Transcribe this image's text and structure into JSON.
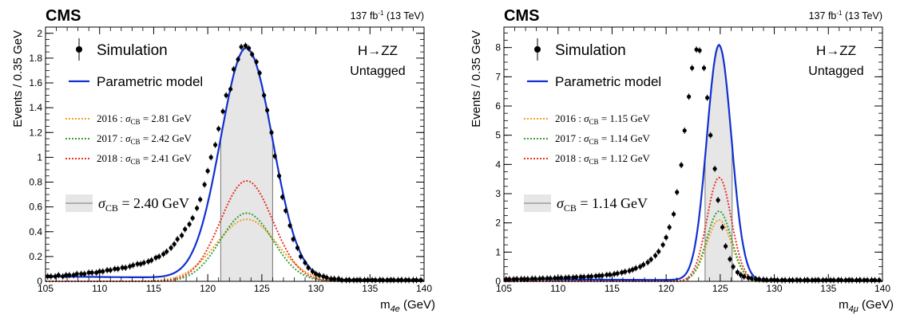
{
  "chart_data": [
    {
      "type": "line",
      "experiment": "CMS",
      "lumi": "137 fb",
      "lumi_sup": "-1",
      "energy": " (13 TeV)",
      "process": "H→ZZ",
      "category": "Untagged",
      "ylabel": "Events / 0.35 GeV",
      "xlabel_main": "m",
      "xlabel_sub": "4e",
      "xlabel_unit": " (GeV)",
      "xlim": [
        105,
        140
      ],
      "ylim": [
        0,
        2.05
      ],
      "xticks": [
        105,
        110,
        115,
        120,
        125,
        130,
        135,
        140
      ],
      "yticks": [
        0,
        0.2,
        0.4,
        0.6,
        0.8,
        1,
        1.2,
        1.4,
        1.6,
        1.8,
        2
      ],
      "ytick_labels": [
        "0",
        "0.2",
        "0.4",
        "0.6",
        "0.8",
        "1",
        "1.2",
        "1.4",
        "1.6",
        "1.8",
        "2"
      ],
      "legend": {
        "simulation": "Simulation",
        "model": "Parametric model",
        "years": [
          {
            "year": "2016",
            "sigma": "2.81 GeV",
            "color": "#f0a020"
          },
          {
            "year": "2017",
            "sigma": "2.42 GeV",
            "color": "#30a030"
          },
          {
            "year": "2018",
            "sigma": "2.41 GeV",
            "color": "#e83020"
          }
        ],
        "band_label": "= 2.40 GeV",
        "sigma_symbol": "σ",
        "sigma_sub": "CB"
      },
      "peak": {
        "mean": 123.6,
        "sigma": 2.4
      },
      "band": [
        121.2,
        126.0
      ],
      "total": {
        "amplitude": 1.86
      },
      "components": [
        {
          "name": "2016",
          "amplitude": 0.5,
          "sigma": 2.81,
          "color": "#f0a020"
        },
        {
          "name": "2017",
          "amplitude": 0.55,
          "sigma": 2.42,
          "color": "#30a030"
        },
        {
          "name": "2018",
          "amplitude": 0.81,
          "sigma": 2.41,
          "color": "#e83020"
        }
      ],
      "model_color": "#1030d0",
      "points": {
        "x": [
          105.2,
          105.5,
          105.9,
          106.2,
          106.6,
          106.9,
          107.2,
          107.6,
          107.9,
          108.3,
          108.6,
          109.0,
          109.3,
          109.7,
          110.0,
          110.3,
          110.7,
          111.0,
          111.4,
          111.7,
          112.1,
          112.4,
          112.8,
          113.1,
          113.5,
          113.8,
          114.1,
          114.5,
          114.8,
          115.2,
          115.5,
          115.9,
          116.2,
          116.6,
          116.9,
          117.2,
          117.6,
          117.9,
          118.3,
          118.6,
          119.0,
          119.3,
          119.7,
          120.0,
          120.3,
          120.7,
          121.0,
          121.4,
          121.7,
          122.1,
          122.4,
          122.8,
          123.1,
          123.5,
          123.8,
          124.1,
          124.5,
          124.8,
          125.2,
          125.5,
          125.9,
          126.2,
          126.6,
          126.9,
          127.2,
          127.6,
          127.9,
          128.3,
          128.6,
          129.0,
          129.3,
          129.7,
          130.0,
          130.3,
          130.7,
          131.0,
          131.4,
          131.7,
          132.1,
          132.4,
          132.8,
          133.1,
          133.5,
          133.8,
          134.1,
          134.5,
          134.8,
          135.2,
          135.5,
          135.9,
          136.2,
          136.6,
          136.9,
          137.2,
          137.6,
          137.9,
          138.3,
          138.6,
          139.0,
          139.3,
          139.7
        ],
        "y": [
          0.04,
          0.04,
          0.04,
          0.05,
          0.04,
          0.05,
          0.05,
          0.05,
          0.06,
          0.06,
          0.06,
          0.07,
          0.07,
          0.07,
          0.08,
          0.08,
          0.09,
          0.09,
          0.1,
          0.1,
          0.11,
          0.11,
          0.12,
          0.13,
          0.14,
          0.14,
          0.15,
          0.16,
          0.17,
          0.19,
          0.2,
          0.22,
          0.24,
          0.27,
          0.3,
          0.34,
          0.37,
          0.42,
          0.46,
          0.51,
          0.59,
          0.66,
          0.78,
          0.89,
          1.0,
          1.1,
          1.23,
          1.37,
          1.5,
          1.55,
          1.71,
          1.79,
          1.89,
          1.9,
          1.88,
          1.83,
          1.77,
          1.68,
          1.5,
          1.38,
          1.2,
          1.01,
          0.85,
          0.68,
          0.57,
          0.45,
          0.34,
          0.27,
          0.2,
          0.15,
          0.11,
          0.08,
          0.06,
          0.05,
          0.04,
          0.03,
          0.02,
          0.02,
          0.02,
          0.01,
          0.01,
          0.01,
          0.01,
          0.01,
          0.01,
          0.01,
          0.01,
          0.01,
          0.01,
          0.01,
          0.01,
          0.01,
          0.01,
          0.01,
          0.01,
          0.01,
          0.01,
          0.01,
          0.01,
          0.01,
          0.01
        ]
      }
    },
    {
      "type": "line",
      "experiment": "CMS",
      "lumi": "137 fb",
      "lumi_sup": "-1",
      "energy": " (13 TeV)",
      "process": "H→ZZ",
      "category": "Untagged",
      "ylabel": "Events / 0.35 GeV",
      "xlabel_main": "m",
      "xlabel_sub": "4μ",
      "xlabel_unit": " (GeV)",
      "xlim": [
        105,
        140
      ],
      "ylim": [
        0,
        8.7
      ],
      "xticks": [
        105,
        110,
        115,
        120,
        125,
        130,
        135,
        140
      ],
      "yticks": [
        0,
        1,
        2,
        3,
        4,
        5,
        6,
        7,
        8
      ],
      "ytick_labels": [
        "0",
        "1",
        "2",
        "3",
        "4",
        "5",
        "6",
        "7",
        "8"
      ],
      "legend": {
        "simulation": "Simulation",
        "model": "Parametric model",
        "years": [
          {
            "year": "2016",
            "sigma": "1.15 GeV",
            "color": "#f0a020"
          },
          {
            "year": "2017",
            "sigma": "1.14 GeV",
            "color": "#30a030"
          },
          {
            "year": "2018",
            "sigma": "1.12 GeV",
            "color": "#e83020"
          }
        ],
        "band_label": "= 1.14 GeV",
        "sigma_symbol": "σ",
        "sigma_sub": "CB"
      },
      "peak": {
        "mean": 124.9,
        "sigma": 1.14
      },
      "band": [
        123.6,
        126.1
      ],
      "total": {
        "amplitude": 8.05
      },
      "components": [
        {
          "name": "2016",
          "amplitude": 2.1,
          "sigma": 1.15,
          "color": "#f0a020"
        },
        {
          "name": "2017",
          "amplitude": 2.4,
          "sigma": 1.14,
          "color": "#30a030"
        },
        {
          "name": "2018",
          "amplitude": 3.55,
          "sigma": 1.12,
          "color": "#e83020"
        }
      ],
      "model_color": "#1030d0",
      "points": {
        "x": [
          105.2,
          105.5,
          105.9,
          106.2,
          106.6,
          106.9,
          107.2,
          107.6,
          107.9,
          108.3,
          108.6,
          109.0,
          109.3,
          109.7,
          110.0,
          110.3,
          110.7,
          111.0,
          111.4,
          111.7,
          112.1,
          112.4,
          112.8,
          113.1,
          113.5,
          113.8,
          114.1,
          114.5,
          114.8,
          115.2,
          115.5,
          115.9,
          116.2,
          116.6,
          116.9,
          117.2,
          117.6,
          117.9,
          118.3,
          118.6,
          119.0,
          119.3,
          119.7,
          120.0,
          120.3,
          120.7,
          121.0,
          121.4,
          121.7,
          122.1,
          122.4,
          122.8,
          123.1,
          123.5,
          123.8,
          124.1,
          124.5,
          124.8,
          125.2,
          125.5,
          125.9,
          126.2,
          126.6,
          126.9,
          127.2,
          127.6,
          127.9,
          128.3,
          128.6,
          129.0,
          129.3,
          129.7,
          130.0,
          130.3,
          130.7,
          131.0,
          131.4,
          131.7,
          132.1,
          132.4,
          132.8,
          133.1,
          133.5,
          133.8,
          134.1,
          134.5,
          134.8,
          135.2,
          135.5,
          135.9,
          136.2,
          136.6,
          136.9,
          137.2,
          137.6,
          137.9,
          138.3,
          138.6,
          139.0,
          139.3,
          139.7
        ],
        "y": [
          0.07,
          0.07,
          0.07,
          0.08,
          0.08,
          0.08,
          0.08,
          0.09,
          0.09,
          0.09,
          0.1,
          0.1,
          0.1,
          0.11,
          0.11,
          0.12,
          0.12,
          0.13,
          0.13,
          0.14,
          0.15,
          0.15,
          0.16,
          0.17,
          0.18,
          0.19,
          0.2,
          0.22,
          0.23,
          0.25,
          0.27,
          0.3,
          0.33,
          0.36,
          0.4,
          0.45,
          0.5,
          0.57,
          0.65,
          0.75,
          0.88,
          1.02,
          1.25,
          1.5,
          1.85,
          2.3,
          3.05,
          3.98,
          5.16,
          6.32,
          7.3,
          7.93,
          7.9,
          7.3,
          6.28,
          5.0,
          3.85,
          2.78,
          1.85,
          1.2,
          0.76,
          0.5,
          0.31,
          0.22,
          0.16,
          0.12,
          0.1,
          0.08,
          0.07,
          0.06,
          0.05,
          0.05,
          0.05,
          0.04,
          0.04,
          0.04,
          0.04,
          0.04,
          0.04,
          0.04,
          0.04,
          0.04,
          0.04,
          0.04,
          0.04,
          0.04,
          0.04,
          0.04,
          0.04,
          0.04,
          0.04,
          0.04,
          0.04,
          0.04,
          0.04,
          0.04,
          0.04,
          0.04,
          0.04,
          0.04,
          0.04
        ]
      }
    }
  ]
}
